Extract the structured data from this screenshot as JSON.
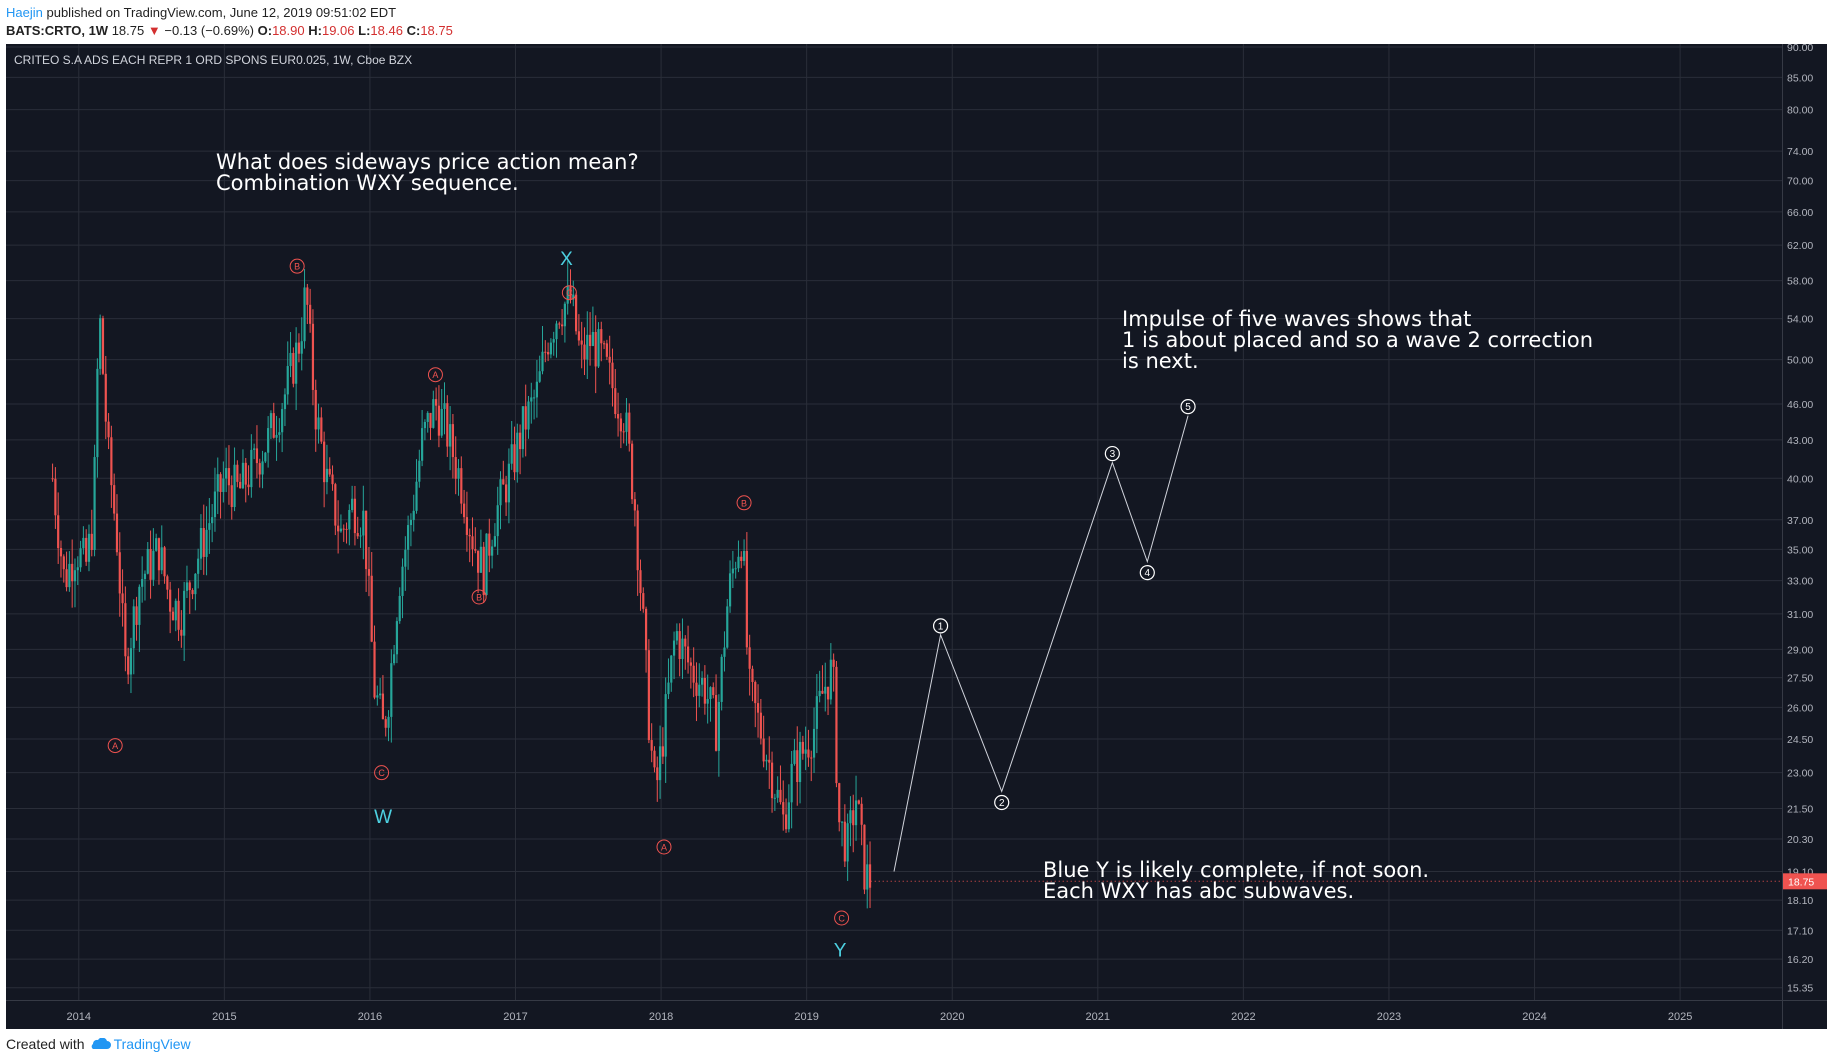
{
  "header": {
    "author": "Haejin",
    "published": "published on TradingView.com, June 12, 2019 09:51:02 EDT",
    "symbol": "BATS:CRTO, 1W",
    "last": "18.75",
    "change": "−0.13 (−0.69%)",
    "o_label": "O:",
    "o_value": "18.90",
    "h_label": "H:",
    "h_value": "19.06",
    "l_label": "L:",
    "l_value": "18.46",
    "c_label": "C:",
    "c_value": "18.75"
  },
  "chart_title": "CRITEO S.A ADS EACH REPR 1 ORD SPONS EUR0.025, 1W, Cboe BZX",
  "annotations": {
    "top_left": "What does sideways price action mean?\nCombination WXY sequence.",
    "right": "Impulse of five waves shows that\n1 is about placed and so a wave 2 correction\nis next.",
    "bottom": "Blue Y is likely complete, if not soon.\nEach WXY has abc subwaves."
  },
  "footer": {
    "created_with": "Created with",
    "brand": "TradingView"
  },
  "colors": {
    "background": "#131722",
    "grid": "#2a2e39",
    "up": "#26a69a",
    "down": "#ef5350",
    "wave_label": "#4dd0e1",
    "price_tag": "#ef5350"
  },
  "chart_data": {
    "type": "candlestick",
    "timeframe": "1W",
    "y_scale": "log",
    "ylim": [
      15.0,
      90.5
    ],
    "xlim": [
      2013.5,
      2025.7
    ],
    "y_ticks": [
      "90.00",
      "85.00",
      "80.00",
      "74.00",
      "70.00",
      "66.00",
      "62.00",
      "58.00",
      "54.00",
      "50.00",
      "46.00",
      "43.00",
      "40.00",
      "37.00",
      "35.00",
      "33.00",
      "31.00",
      "29.00",
      "27.50",
      "26.00",
      "24.50",
      "23.00",
      "21.50",
      "20.30",
      "19.10",
      "18.10",
      "17.10",
      "16.20",
      "15.35"
    ],
    "x_ticks": [
      "2014",
      "2015",
      "2016",
      "2017",
      "2018",
      "2019",
      "2020",
      "2021",
      "2022",
      "2023",
      "2024",
      "2025"
    ],
    "last_price": "18.75",
    "price_path": [
      [
        2013.82,
        40
      ],
      [
        2013.9,
        33
      ],
      [
        2013.98,
        35
      ],
      [
        2014.05,
        34
      ],
      [
        2014.1,
        37
      ],
      [
        2014.14,
        55
      ],
      [
        2014.2,
        42
      ],
      [
        2014.26,
        36
      ],
      [
        2014.32,
        28
      ],
      [
        2014.42,
        33
      ],
      [
        2014.55,
        35
      ],
      [
        2014.62,
        32
      ],
      [
        2014.7,
        31
      ],
      [
        2014.8,
        34
      ],
      [
        2014.9,
        37
      ],
      [
        2015.0,
        40
      ],
      [
        2015.1,
        39
      ],
      [
        2015.2,
        41
      ],
      [
        2015.3,
        43
      ],
      [
        2015.42,
        47
      ],
      [
        2015.52,
        52
      ],
      [
        2015.56,
        57
      ],
      [
        2015.62,
        46
      ],
      [
        2015.7,
        40
      ],
      [
        2015.8,
        36
      ],
      [
        2015.88,
        38
      ],
      [
        2015.96,
        37
      ],
      [
        2016.03,
        27
      ],
      [
        2016.09,
        25
      ],
      [
        2016.12,
        26
      ],
      [
        2016.2,
        33
      ],
      [
        2016.28,
        37
      ],
      [
        2016.36,
        43
      ],
      [
        2016.45,
        46
      ],
      [
        2016.52,
        44
      ],
      [
        2016.62,
        40
      ],
      [
        2016.7,
        36
      ],
      [
        2016.78,
        33.5
      ],
      [
        2016.85,
        37
      ],
      [
        2016.95,
        40
      ],
      [
        2017.05,
        44
      ],
      [
        2017.15,
        47
      ],
      [
        2017.22,
        52
      ],
      [
        2017.3,
        55
      ],
      [
        2017.38,
        56
      ],
      [
        2017.45,
        50
      ],
      [
        2017.52,
        52
      ],
      [
        2017.6,
        50
      ],
      [
        2017.68,
        47
      ],
      [
        2017.75,
        45
      ],
      [
        2017.82,
        38
      ],
      [
        2017.88,
        30
      ],
      [
        2017.92,
        25
      ],
      [
        2017.96,
        22
      ],
      [
        2018.02,
        25
      ],
      [
        2018.1,
        30
      ],
      [
        2018.2,
        28
      ],
      [
        2018.3,
        27
      ],
      [
        2018.38,
        25
      ],
      [
        2018.46,
        32
      ],
      [
        2018.52,
        35
      ],
      [
        2018.56,
        36
      ],
      [
        2018.6,
        27
      ],
      [
        2018.68,
        25
      ],
      [
        2018.76,
        23
      ],
      [
        2018.84,
        21
      ],
      [
        2018.9,
        23
      ],
      [
        2018.98,
        24
      ],
      [
        2019.05,
        25
      ],
      [
        2019.12,
        27
      ],
      [
        2019.18,
        28
      ],
      [
        2019.22,
        21
      ],
      [
        2019.28,
        20
      ],
      [
        2019.34,
        22
      ],
      [
        2019.4,
        19
      ],
      [
        2019.44,
        18.75
      ]
    ],
    "projection": {
      "points": [
        [
          2019.6,
          19.1
        ],
        [
          2019.92,
          29.8
        ],
        [
          2020.34,
          22.2
        ],
        [
          2021.1,
          41.2
        ],
        [
          2021.34,
          34.2
        ],
        [
          2021.62,
          45.0
        ]
      ],
      "labels": [
        "1",
        "2",
        "3",
        "4",
        "5"
      ]
    },
    "sub_wave_labels": [
      {
        "text": "A",
        "x": 2014.25,
        "y": 24.2
      },
      {
        "text": "B",
        "x": 2015.5,
        "y": 59.6
      },
      {
        "text": "C",
        "x": 2016.08,
        "y": 23.0
      },
      {
        "text": "A",
        "x": 2016.45,
        "y": 48.6
      },
      {
        "text": "B",
        "x": 2016.75,
        "y": 32.0
      },
      {
        "text": "C",
        "x": 2017.37,
        "y": 56.7
      },
      {
        "text": "A",
        "x": 2018.02,
        "y": 20.0
      },
      {
        "text": "B",
        "x": 2018.57,
        "y": 38.2
      },
      {
        "text": "C",
        "x": 2019.24,
        "y": 17.5
      }
    ],
    "main_wave_labels": [
      {
        "text": "W",
        "x": 2016.09,
        "y": 21.2
      },
      {
        "text": "X",
        "x": 2017.35,
        "y": 60.5
      },
      {
        "text": "Y",
        "x": 2019.23,
        "y": 16.5
      }
    ]
  }
}
